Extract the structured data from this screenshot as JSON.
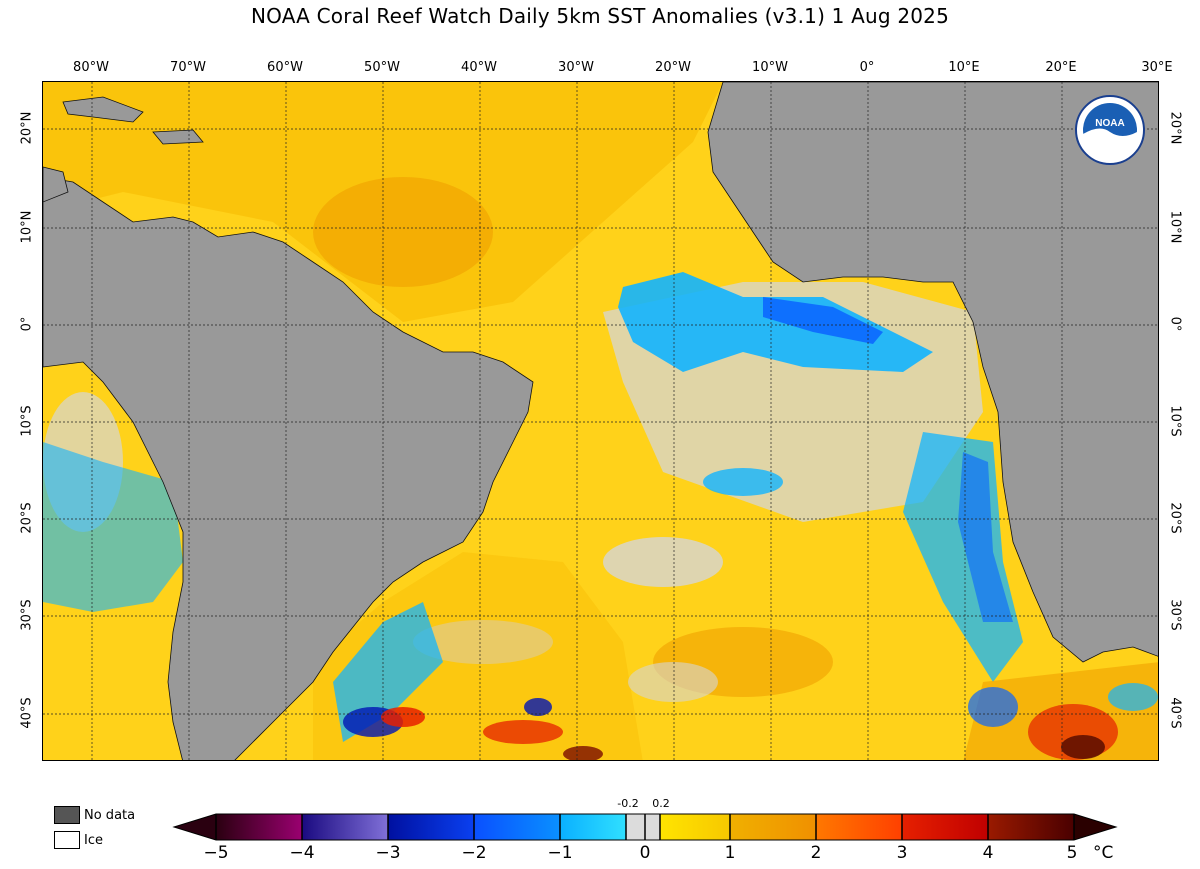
{
  "title": "NOAA Coral Reef Watch Daily 5km SST Anomalies  (v3.1)   1 Aug 2025",
  "lon_labels": [
    "80°W",
    "70°W",
    "60°W",
    "50°W",
    "40°W",
    "30°W",
    "20°W",
    "10°W",
    "0°",
    "10°E",
    "20°E",
    "30°E"
  ],
  "lat_labels": [
    "20°N",
    "10°N",
    "0°",
    "10°S",
    "20°S",
    "30°S",
    "40°S"
  ],
  "legend": {
    "no_data": "No data",
    "ice": "Ice",
    "no_data_color": "#555555",
    "ice_color": "#ffffff"
  },
  "colorbar": {
    "ticks": [
      "−5",
      "−4",
      "−3",
      "−2",
      "−1",
      "0",
      "1",
      "2",
      "3",
      "4",
      "5"
    ],
    "small_ticks": [
      "-0.2",
      "0.2"
    ],
    "unit": "°C",
    "colors": {
      "m5": "#2a0010",
      "m4": "#760068",
      "m3": "#2a1496",
      "m2": "#0014b4",
      "m1": "#0a64ff",
      "m0": "#12c8ff",
      "neutral": "#dcdcdc",
      "p0": "#ffe400",
      "p1": "#f0b000",
      "p2": "#ff7800",
      "p3": "#e62000",
      "p4": "#7a0c00",
      "p5": "#3a0000"
    }
  },
  "map": {
    "land_color": "#999999",
    "ocean_warm": "#ffd21a",
    "ocean_hot": "#f0a000",
    "ocean_cool": "#12b4ff",
    "ocean_neutral": "#d6d6d6",
    "logo": "NOAA"
  }
}
